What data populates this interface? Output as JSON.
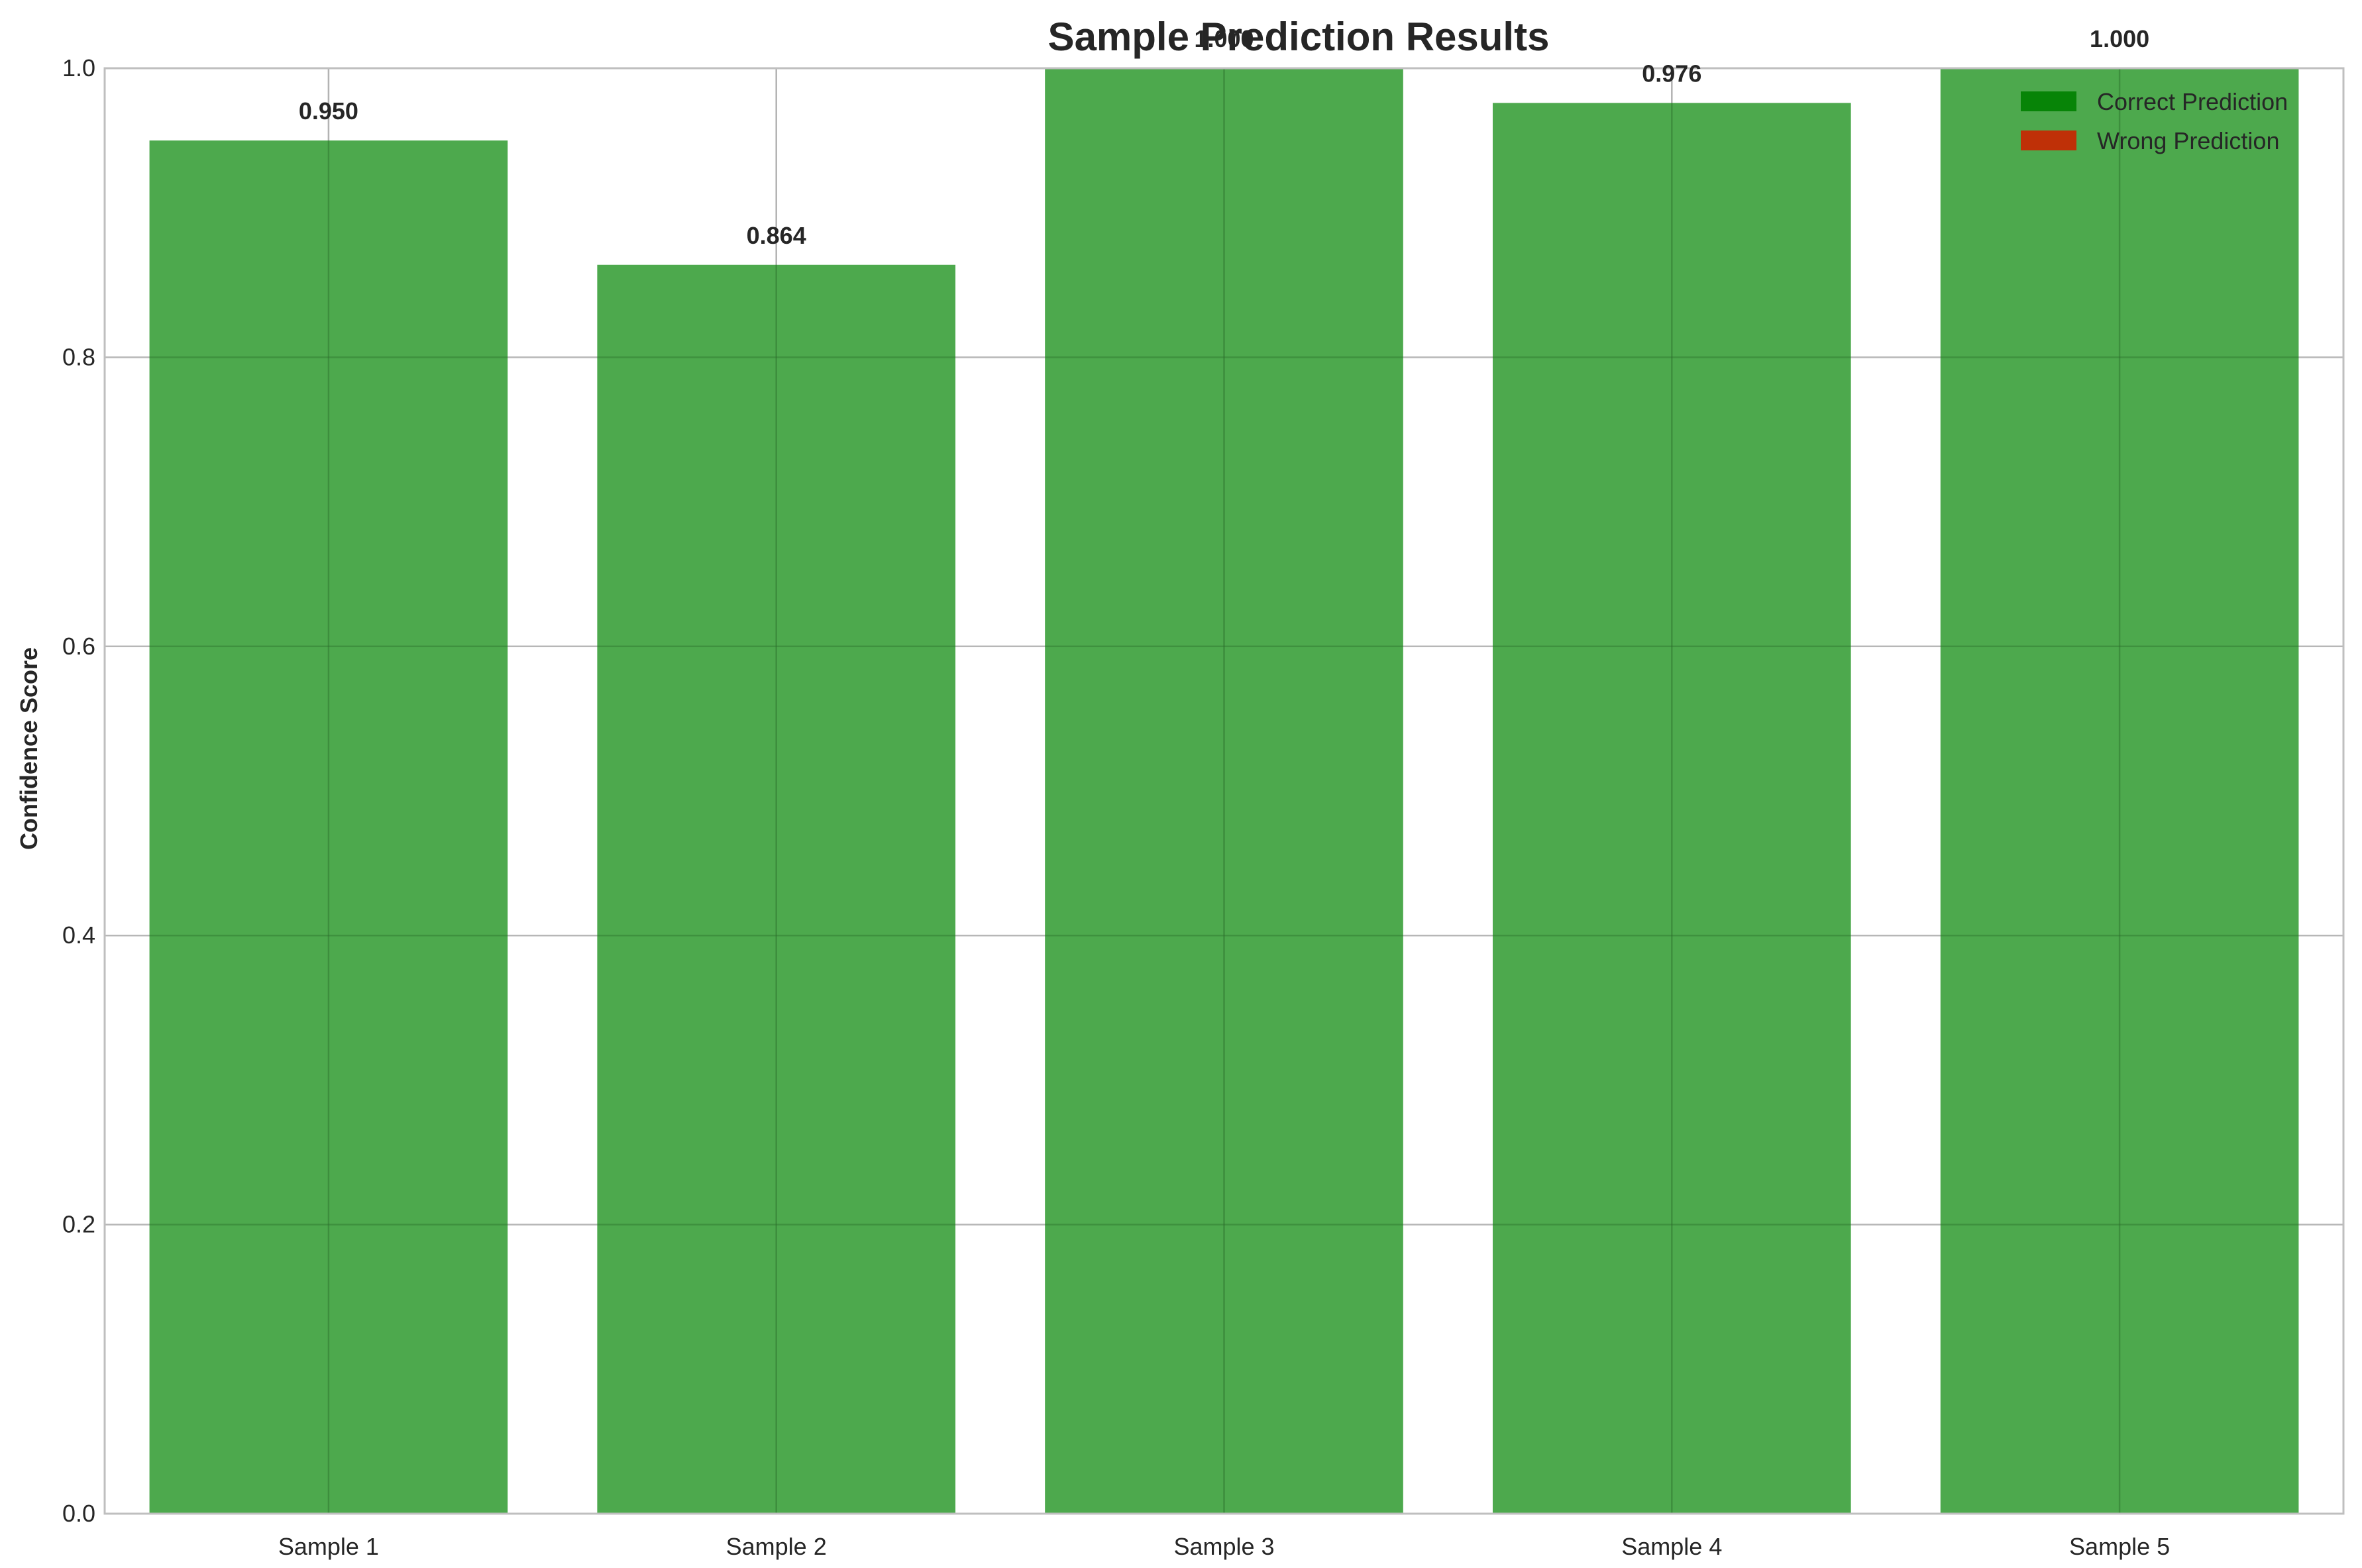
{
  "chart_data": {
    "type": "bar",
    "title": "Sample Prediction Results",
    "xlabel": "",
    "ylabel": "Confidence Score",
    "categories": [
      "Sample 1",
      "Sample 2",
      "Sample 3",
      "Sample 4",
      "Sample 5"
    ],
    "values": [
      0.95,
      0.864,
      1.0,
      0.976,
      1.0
    ],
    "value_labels": [
      "0.950",
      "0.864",
      "1.000",
      "0.976",
      "1.000"
    ],
    "correct": [
      true,
      true,
      true,
      true,
      true
    ],
    "ylim": [
      0,
      1.0
    ],
    "yticks": [
      0.0,
      0.2,
      0.4,
      0.6,
      0.8,
      1.0
    ],
    "ytick_labels": [
      "0.0",
      "0.2",
      "0.4",
      "0.6",
      "0.8",
      "1.0"
    ],
    "grid": true,
    "legend": {
      "position": "top-right",
      "entries": [
        {
          "label": "Correct Prediction",
          "color": "#008000"
        },
        {
          "label": "Wrong Prediction",
          "color": "#cc2200"
        }
      ]
    },
    "colors": {
      "correct_bar": "#2e9a2e",
      "wrong_bar": "#d42a12",
      "grid": "#cccccc",
      "axis": "#bfbfbf"
    }
  }
}
